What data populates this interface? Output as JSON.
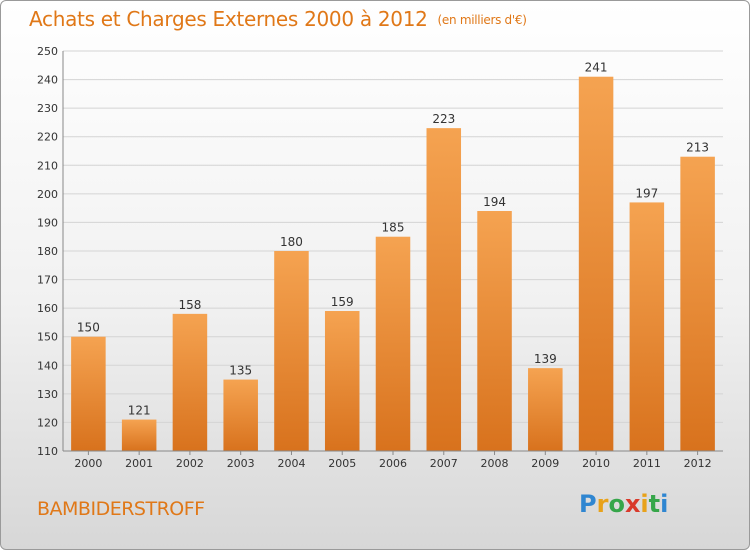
{
  "header": {
    "title": "Achats et Charges Externes 2000 à 2012",
    "unit": "(en milliers d'€)"
  },
  "commune": "BAMBIDERSTROFF",
  "logo": {
    "letters": [
      {
        "char": "P",
        "color": "#2f86d1"
      },
      {
        "char": "r",
        "color": "#e8a21a"
      },
      {
        "char": "o",
        "color": "#36a64a"
      },
      {
        "char": "x",
        "color": "#d93a2b"
      },
      {
        "char": "i",
        "color": "#e8a21a"
      },
      {
        "char": "t",
        "color": "#36a64a"
      },
      {
        "char": "i",
        "color": "#2f86d1"
      }
    ]
  },
  "chart_data": {
    "type": "bar",
    "title": "Achats et Charges Externes 2000 à 2012",
    "subtitle": "(en milliers d'€)",
    "categories": [
      "2000",
      "2001",
      "2002",
      "2003",
      "2004",
      "2005",
      "2006",
      "2007",
      "2008",
      "2009",
      "2010",
      "2011",
      "2012"
    ],
    "values": [
      150,
      121,
      158,
      135,
      180,
      159,
      185,
      223,
      194,
      139,
      241,
      197,
      213
    ],
    "ylim": [
      110,
      250
    ],
    "yticks": [
      110,
      120,
      130,
      140,
      150,
      160,
      170,
      180,
      190,
      200,
      210,
      220,
      230,
      240,
      250
    ],
    "grid": true,
    "bar_color_top": "#f5a351",
    "bar_color_bottom": "#d8721d",
    "title_color": "#e07818"
  }
}
